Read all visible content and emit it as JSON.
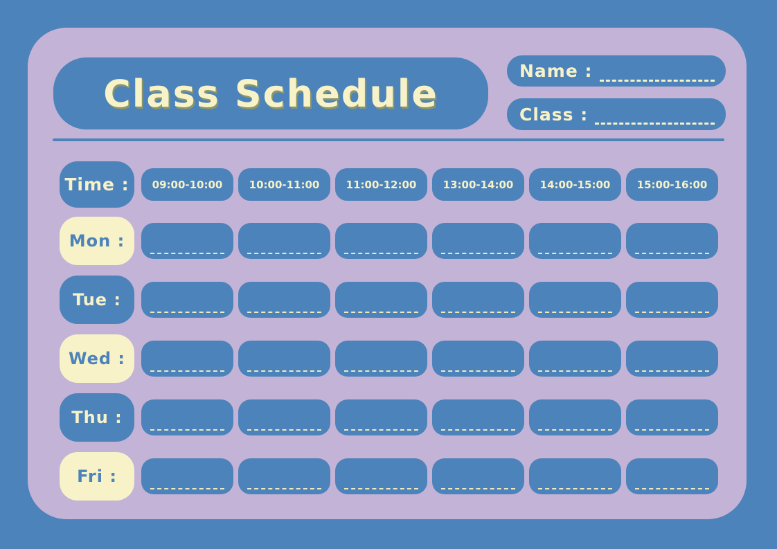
{
  "title": "Class Schedule",
  "header_fields": {
    "name": {
      "label": "Name :",
      "value": ""
    },
    "class": {
      "label": "Class :",
      "value": ""
    }
  },
  "schedule": {
    "time_label": "Time :",
    "time_slots": [
      "09:00-10:00",
      "10:00-11:00",
      "11:00-12:00",
      "13:00-14:00",
      "14:00-15:00",
      "15:00-16:00"
    ],
    "days": [
      {
        "label": "Mon :",
        "entries": [
          "",
          "",
          "",
          "",
          "",
          ""
        ]
      },
      {
        "label": "Tue :",
        "entries": [
          "",
          "",
          "",
          "",
          "",
          ""
        ]
      },
      {
        "label": "Wed :",
        "entries": [
          "",
          "",
          "",
          "",
          "",
          ""
        ]
      },
      {
        "label": "Thu :",
        "entries": [
          "",
          "",
          "",
          "",
          "",
          ""
        ]
      },
      {
        "label": "Fri :",
        "entries": [
          "",
          "",
          "",
          "",
          "",
          ""
        ]
      }
    ]
  },
  "colors": {
    "blue": "#4c83ba",
    "lavender": "#c3b3d6",
    "cream": "#f7f2c8",
    "dash": "#efe9c0",
    "title_shadow": "#8c9668"
  }
}
